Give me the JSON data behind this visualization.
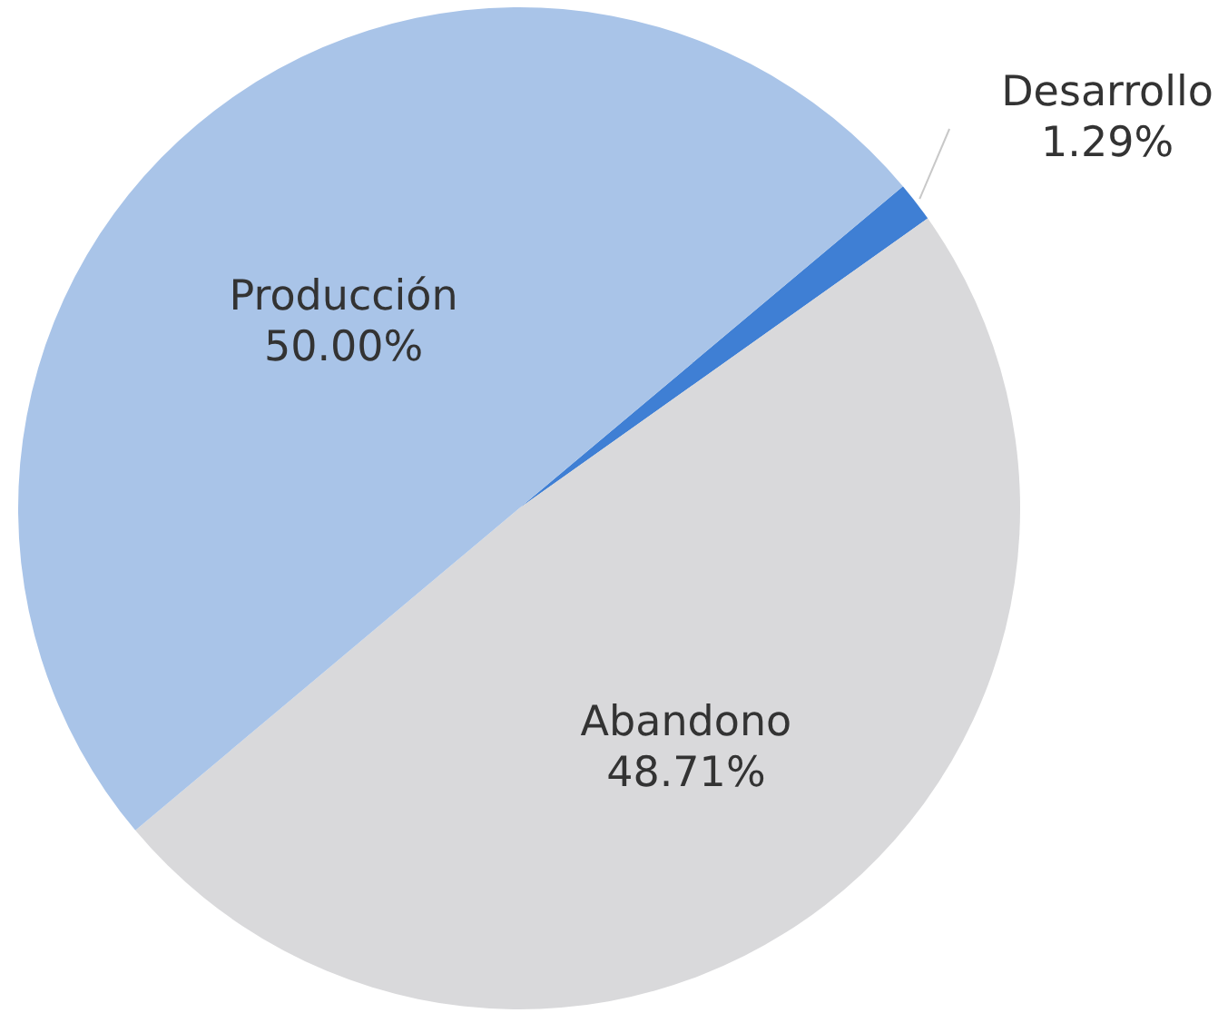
{
  "chart_data": {
    "type": "pie",
    "categories": [
      "Desarrollo",
      "Abandono",
      "Producción"
    ],
    "values": [
      1.29,
      48.71,
      50.0
    ],
    "colors": [
      "#3f7fd4",
      "#d9d9db",
      "#a9c4e8"
    ],
    "value_labels": [
      "1.29%",
      "48.71%",
      "50.00%"
    ]
  }
}
